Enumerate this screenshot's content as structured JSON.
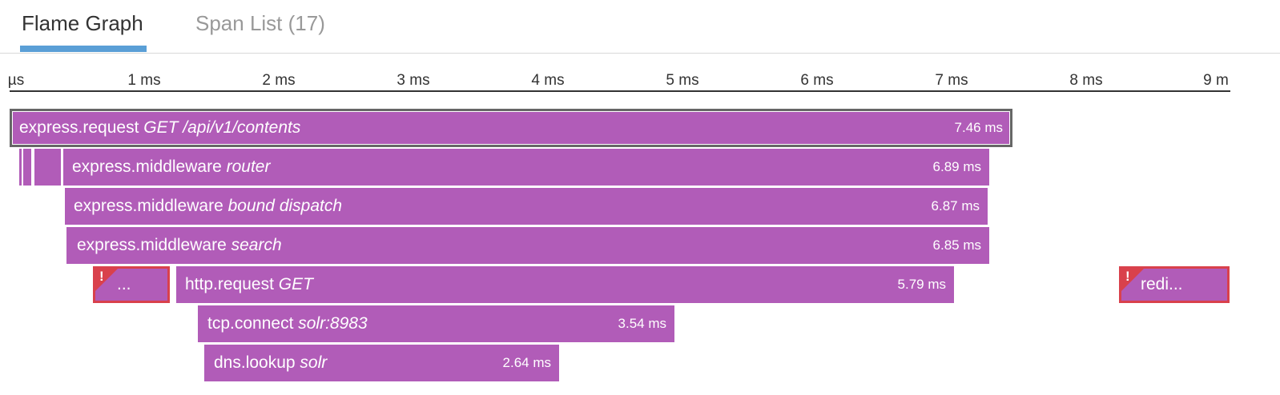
{
  "tabs": {
    "flame_graph": "Flame Graph",
    "span_list": "Span List (17)"
  },
  "axis": {
    "ticks": [
      "µs",
      "1 ms",
      "2 ms",
      "3 ms",
      "4 ms",
      "5 ms",
      "6 ms",
      "7 ms",
      "8 ms",
      "9 m"
    ]
  },
  "spans": {
    "root": {
      "service": "express.request",
      "resource": "GET /api/v1/contents",
      "duration": "7.46 ms"
    },
    "router": {
      "service": "express.middleware",
      "resource": "router",
      "duration": "6.89 ms"
    },
    "bound_dispatch": {
      "service": "express.middleware",
      "resource": "bound dispatch",
      "duration": "6.87 ms"
    },
    "search": {
      "service": "express.middleware",
      "resource": "search",
      "duration": "6.85 ms"
    },
    "error_left": {
      "label": "...",
      "flag": "!"
    },
    "http_request": {
      "service": "http.request",
      "resource": "GET",
      "duration": "5.79 ms"
    },
    "error_right": {
      "label": "redi...",
      "flag": "!"
    },
    "tcp_connect": {
      "service": "tcp.connect",
      "resource": "solr:8983",
      "duration": "3.54 ms"
    },
    "dns_lookup": {
      "service": "dns.lookup",
      "resource": "solr",
      "duration": "2.64 ms"
    }
  },
  "colors": {
    "span_fill": "#b15cb8",
    "error_border": "#d9414c",
    "selected_outline": "#666666",
    "tab_underline": "#5a9fd6"
  }
}
